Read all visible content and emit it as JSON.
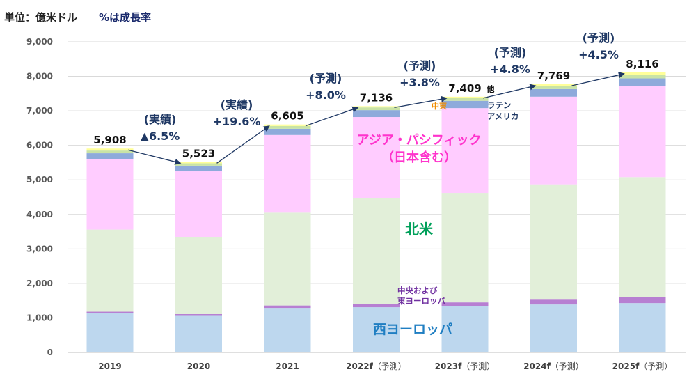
{
  "header": {
    "unit_label": "単位：億米ドル",
    "growth_note": "%は成長率"
  },
  "colors": {
    "west_europe": "#bdd7ee",
    "central_east_europe": "#b77fd2",
    "north_america": "#e2efd9",
    "asia_pacific": "#ffccff",
    "latin_america": "#8eaadb",
    "middle_east": "#c9e3a6",
    "other": "#ffff99",
    "arrow": "#1f3864",
    "growth_text": "#1f3864",
    "ap_label": "#ff33cc",
    "na_label": "#00a05a",
    "we_label": "#1f7ec2",
    "cee_label": "#7030a0",
    "me_label": "#f08c00",
    "la_label": "#1f3864"
  },
  "chart_data": {
    "type": "bar",
    "stacked": true,
    "title": "",
    "xlabel": "",
    "ylabel": "",
    "ylim": [
      0,
      9000
    ],
    "yticks": [
      0,
      1000,
      2000,
      3000,
      4000,
      5000,
      6000,
      7000,
      8000,
      9000
    ],
    "ytick_labels": [
      "0",
      "1,000",
      "2,000",
      "3,000",
      "4,000",
      "5,000",
      "6,000",
      "7,000",
      "8,000",
      "9,000"
    ],
    "grid": true,
    "categories": [
      {
        "main": "2019",
        "suffix": ""
      },
      {
        "main": "2020",
        "suffix": ""
      },
      {
        "main": "2021",
        "suffix": ""
      },
      {
        "main": "2022f",
        "suffix": "（予測）"
      },
      {
        "main": "2023f",
        "suffix": "（予測）"
      },
      {
        "main": "2024f",
        "suffix": "（予測）"
      },
      {
        "main": "2025f",
        "suffix": "（予測）"
      }
    ],
    "series": [
      {
        "key": "west_europe",
        "name": "西ヨーロッパ",
        "values": [
          1130,
          1060,
          1290,
          1310,
          1350,
          1390,
          1430
        ]
      },
      {
        "key": "central_east_europe",
        "name": "中央および東ヨーロッパ",
        "values": [
          50,
          50,
          70,
          90,
          100,
          140,
          170
        ]
      },
      {
        "key": "north_america",
        "name": "北米",
        "values": [
          2380,
          2220,
          2690,
          3060,
          3170,
          3340,
          3480
        ]
      },
      {
        "key": "asia_pacific",
        "name": "アジア・パシフィック（日本含む）",
        "values": [
          2040,
          1930,
          2250,
          2360,
          2460,
          2540,
          2640
        ]
      },
      {
        "key": "latin_america",
        "name": "ラテンアメリカ",
        "values": [
          170,
          150,
          180,
          200,
          210,
          220,
          220
        ]
      },
      {
        "key": "middle_east",
        "name": "中東",
        "values": [
          80,
          70,
          80,
          80,
          80,
          90,
          100
        ]
      },
      {
        "key": "other",
        "name": "他",
        "values": [
          58,
          43,
          45,
          36,
          39,
          49,
          76
        ]
      }
    ],
    "totals": [
      5908,
      5523,
      6605,
      7136,
      7409,
      7769,
      8116
    ],
    "total_labels": [
      "5,908",
      "5,523",
      "6,605",
      "7,136",
      "7,409",
      "7,769",
      "8,116"
    ],
    "growth_annotations": [
      {
        "between": [
          0,
          1
        ],
        "line1": "(実績)",
        "line2": "▲6.5%"
      },
      {
        "between": [
          1,
          2
        ],
        "line1": "(実績)",
        "line2": "+19.6%"
      },
      {
        "between": [
          2,
          3
        ],
        "line1": "(予測)",
        "line2": "+8.0%"
      },
      {
        "between": [
          3,
          4
        ],
        "line1": "(予測)",
        "line2": "+3.8%"
      },
      {
        "between": [
          4,
          5
        ],
        "line1": "(予測)",
        "line2": "+4.8%"
      },
      {
        "between": [
          5,
          6
        ],
        "line1": "(予測)",
        "line2": "+4.5%"
      }
    ],
    "region_labels": {
      "asia_pacific": [
        "アジア・パシフィック",
        "（日本含む）"
      ],
      "north_america": [
        "北米"
      ],
      "west_europe": [
        "西ヨーロッパ"
      ],
      "central_east_europe": [
        "中央および",
        "東ヨーロッパ"
      ],
      "middle_east": [
        "中東"
      ],
      "latin_america": [
        "ラテン",
        "アメリカ"
      ],
      "other": [
        "他"
      ]
    }
  }
}
